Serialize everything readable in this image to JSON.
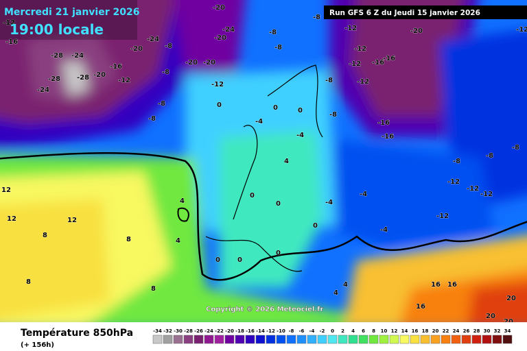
{
  "header": {
    "date": "Mercredi 21 janvier 2026",
    "time": "19:00 locale",
    "run": "Run GFS 6 Z du Jeudi 15 janvier 2026"
  },
  "footer": {
    "title": "Température 850hPa",
    "lead": "(+ 156h)",
    "copyright": "Copyright © 2026 Meteociel.fr"
  },
  "legend": {
    "ticks": [
      -34,
      -32,
      -30,
      -28,
      -26,
      -24,
      -22,
      -20,
      -18,
      -16,
      -14,
      -12,
      -10,
      -8,
      -6,
      -4,
      -2,
      0,
      2,
      4,
      6,
      8,
      10,
      12,
      14,
      16,
      18,
      20,
      22,
      24,
      26,
      28,
      30,
      32,
      34
    ],
    "colors": [
      "#c8c8c8",
      "#a0a0a0",
      "#9a7090",
      "#8a4080",
      "#7a2070",
      "#901890",
      "#a020a0",
      "#7000a0",
      "#5000b0",
      "#3000c0",
      "#1010d0",
      "#0030e0",
      "#0050f0",
      "#1070ff",
      "#2090ff",
      "#30b0ff",
      "#40d0ff",
      "#50e8f0",
      "#40e8c0",
      "#30e090",
      "#40e060",
      "#70e840",
      "#a0f040",
      "#d0f850",
      "#f8f860",
      "#f8e040",
      "#f8c030",
      "#f8a020",
      "#f88010",
      "#f06010",
      "#e04010",
      "#d02010",
      "#b01010",
      "#801010",
      "#501010"
    ]
  },
  "map_labels": [
    -12,
    -16,
    -28,
    -24,
    -28,
    -24,
    -28,
    -20,
    -16,
    -12,
    -20,
    -24,
    -8,
    -8,
    -8,
    -8,
    -20,
    -20,
    -20,
    -24,
    -12,
    -20,
    -8,
    -8,
    -8,
    -12,
    -12,
    -12,
    -12,
    -16,
    -16,
    -20,
    -16,
    -16,
    0,
    0,
    0,
    -4,
    -8,
    -8,
    -8,
    -8,
    -8,
    -12,
    -12,
    -12,
    -12,
    4,
    -4,
    -4,
    -4,
    0,
    -4,
    0,
    0,
    4,
    4,
    8,
    12,
    12,
    12,
    8,
    8,
    8,
    0,
    0,
    0,
    4,
    4,
    16,
    16,
    16,
    20,
    20,
    20,
    -12
  ]
}
